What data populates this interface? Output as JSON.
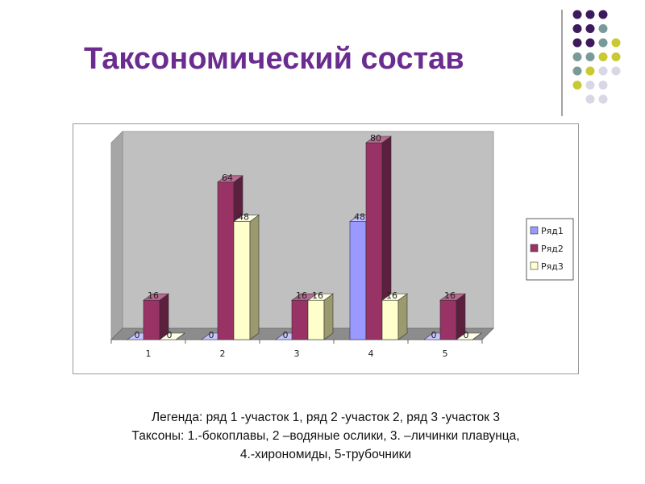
{
  "slide": {
    "title": "Таксономический состав",
    "notes": [
      "Легенда:    ряд 1 -участок 1,  ряд 2 -участок 2,  ряд 3 -участок 3",
      "Таксоны: 1.-бокоплавы, 2 –водяные ослики, 3. –личинки плавунца,",
      "4.-хирономиды, 5-трубочники"
    ]
  },
  "chart_data": {
    "type": "bar",
    "style": "3d-clustered-column",
    "categories": [
      "1",
      "2",
      "3",
      "4",
      "5"
    ],
    "series": [
      {
        "name": "Ряд1",
        "values": [
          0,
          0,
          0,
          48,
          0
        ],
        "color": "#9999ff",
        "side": "#6060c0",
        "top": "#c4c4ff"
      },
      {
        "name": "Ряд2",
        "values": [
          16,
          64,
          16,
          80,
          16
        ],
        "color": "#993366",
        "side": "#5c1f3e",
        "top": "#b86a90"
      },
      {
        "name": "Ряд3",
        "values": [
          0,
          48,
          16,
          16,
          0
        ],
        "color": "#ffffcc",
        "side": "#9a9a6e",
        "top": "#ffffe8"
      }
    ],
    "ylim": [
      0,
      80
    ],
    "grid": false,
    "legend_position": "right",
    "plot_background": "#c0c0c0"
  },
  "decor": {
    "dot_colors": [
      "#3d1a5c",
      "#7a9a9a",
      "#c9c932",
      "#d7d7e6"
    ]
  }
}
